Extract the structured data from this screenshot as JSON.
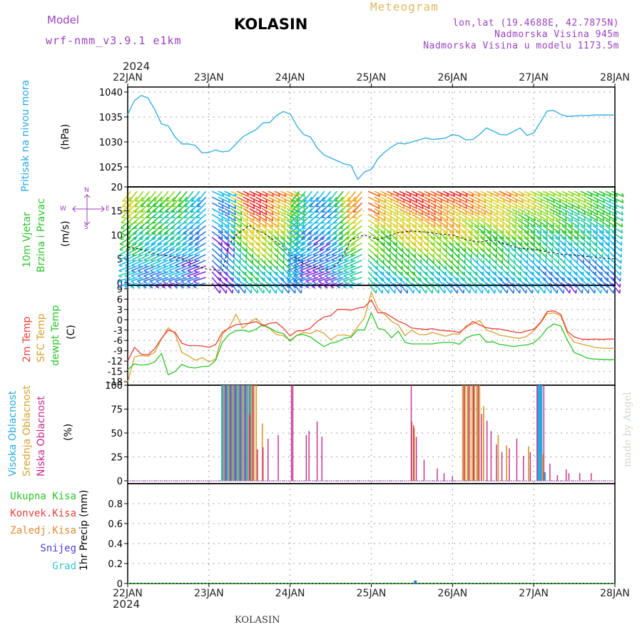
{
  "header": {
    "model_label": "Model",
    "model_name": "wrf-nmm_v3.9.1 e1km",
    "station": "KOLASIN",
    "meteogram_label": "Meteogram",
    "lonlat": "lon,lat (19.4688E, 42.7875N)",
    "altitude": "Nadmorska Visina 945m",
    "model_altitude": "Nadmorska Visina u modelu 1173.5m"
  },
  "footer": {
    "station": "KOLASIN",
    "credit": "made by Angel"
  },
  "time_axis": {
    "year": "2024",
    "days": [
      "22JAN",
      "23JAN",
      "24JAN",
      "25JAN",
      "26JAN",
      "27JAN",
      "28JAN"
    ]
  },
  "labels": {
    "pressure_name": "Pritisak na nivou mora",
    "pressure_unit": "(hPa)",
    "wind_name1": "10m Vjetar",
    "wind_name2": "Brzina i Pravac",
    "wind_unit": "(m/s)",
    "compass_w": "W",
    "compass_e": "E",
    "compass_n": "N",
    "compass_s": "S",
    "temp2m": "2m Temp",
    "tempsfc": "SFC Temp",
    "dewpt": "dewpt Temp",
    "temp_unit": "(C)",
    "cloud_high": "Visoka Oblacnost",
    "cloud_mid": "Srednja Oblacnost",
    "cloud_low": "Niska Oblacnost",
    "cloud_unit": "(%)",
    "precip_total": "Ukupna Kisa",
    "precip_conv": "Konvek.Kisa",
    "precip_frozen": "Zaledj.Kisa",
    "precip_snow": "Snijeg",
    "precip_hail": "Grad",
    "precip_unit": "1hr Precip (mm)"
  },
  "colors": {
    "pressure": "#29a9e1",
    "temp2m": "#e8403a",
    "tempsfc": "#d9a030",
    "dewpt": "#2bc52b",
    "cloud_high": "#29a9e1",
    "cloud_mid": "#d9a030",
    "cloud_low": "#c8288c",
    "precip_total": "#2bc52b",
    "precip_conv": "#e8403a",
    "precip_frozen": "#e08a30",
    "precip_snow": "#4a40d8",
    "precip_hail": "#30c8c0",
    "title_purple": "#9a40c0",
    "meteogram_gold": "#e0b860"
  },
  "chart_data": [
    {
      "type": "line",
      "name": "pressure",
      "ylabel": "Pritisak na nivou mora (hPa)",
      "ylim": [
        1021,
        1041
      ],
      "yticks": [
        1025,
        1030,
        1035,
        1040
      ],
      "xlim": [
        0,
        144
      ],
      "x": [
        0,
        2,
        4,
        6,
        8,
        10,
        12,
        14,
        16,
        18,
        20,
        22,
        24,
        26,
        28,
        30,
        32,
        34,
        36,
        38,
        40,
        42,
        44,
        46,
        48,
        50,
        52,
        54,
        56,
        58,
        60,
        62,
        64,
        66,
        68,
        70,
        72,
        74,
        76,
        78,
        80,
        82,
        84,
        86,
        88,
        90,
        92,
        94,
        96,
        98,
        100,
        102,
        104,
        106,
        108,
        110,
        112,
        114,
        116,
        118,
        120,
        122,
        124,
        126,
        128,
        130,
        132,
        134,
        136,
        138,
        140,
        142,
        144
      ],
      "series": [
        {
          "values": [
            1035.5,
            1038.3,
            1039.3,
            1038.8,
            1036.5,
            1033.6,
            1033.2,
            1031,
            1029.6,
            1029.6,
            1029.3,
            1027.8,
            1027.9,
            1028.4,
            1028,
            1028.2,
            1029.6,
            1031,
            1031.8,
            1032.5,
            1033.8,
            1033.9,
            1035.3,
            1036.1,
            1035.6,
            1033.2,
            1031.5,
            1031,
            1028.8,
            1027.4,
            1026.8,
            1026.2,
            1025.6,
            1025.3,
            1022.5,
            1024,
            1024.5,
            1026.7,
            1028,
            1029,
            1029.8,
            1029.6,
            1030,
            1030.4,
            1030.8,
            1030.5,
            1030.6,
            1030.8,
            1031.5,
            1031.2,
            1030.4,
            1030.5,
            1031.5,
            1032.8,
            1032.2,
            1031.5,
            1031.4,
            1032.1,
            1032.8,
            1031.3,
            1031.8,
            1034,
            1036.2,
            1036.3,
            1035.5,
            1035.1,
            1035.2,
            1035.3,
            1035.3,
            1035.4,
            1035.4,
            1035.4,
            1035.4
          ]
        }
      ]
    },
    {
      "type": "line",
      "name": "wind",
      "ylabel": "10m Vjetar Brzina i Pravac (m/s)",
      "ylim": [
        -0.5,
        20
      ],
      "yticks": [
        0,
        5,
        10,
        15,
        20
      ],
      "xlim": [
        0,
        144
      ],
      "x": [
        0,
        4,
        8,
        12,
        16,
        20,
        24,
        28,
        30,
        32,
        34,
        36,
        38,
        40,
        42,
        44,
        46,
        48,
        50,
        52,
        54,
        56,
        58,
        60,
        62,
        64,
        66,
        68,
        70,
        72,
        74,
        76,
        78,
        80,
        84,
        88,
        92,
        96,
        100,
        104,
        108,
        112,
        116,
        120,
        124,
        128,
        132,
        136,
        140,
        144
      ],
      "series": [
        {
          "values": [
            7.5,
            7,
            6,
            5.6,
            5.2,
            3.4,
            2.8,
            2.6,
            8,
            10,
            11,
            12,
            11,
            10.5,
            9.5,
            8.5,
            7.5,
            6,
            5,
            4,
            3.5,
            3,
            2.8,
            3,
            4,
            6,
            9,
            9.5,
            10,
            9.5,
            9,
            9.5,
            10,
            10.5,
            10.8,
            10.6,
            10.2,
            10,
            9,
            8.5,
            9,
            8,
            7.2,
            7,
            6.5,
            6,
            5.8,
            5.5,
            5.2,
            5
          ]
        }
      ],
      "barbs": {
        "speed_range": [
          0,
          18
        ],
        "palette": [
          "#7a2cd8",
          "#2b7be0",
          "#18b8e8",
          "#22c8a0",
          "#2bc52b",
          "#8ad820",
          "#d8d020",
          "#f0a020",
          "#f06020",
          "#e82a2a"
        ]
      }
    },
    {
      "type": "line",
      "name": "temperature",
      "ylabel": "(C)",
      "ylim": [
        -19,
        10
      ],
      "yticks": [
        -18,
        -15,
        -12,
        -9,
        -6,
        -3,
        0,
        3,
        6,
        9
      ],
      "xlim": [
        0,
        144
      ],
      "x": [
        0,
        2,
        4,
        6,
        8,
        10,
        12,
        14,
        16,
        18,
        20,
        22,
        24,
        26,
        28,
        30,
        32,
        34,
        36,
        38,
        40,
        42,
        44,
        46,
        48,
        50,
        52,
        54,
        56,
        58,
        60,
        62,
        64,
        66,
        68,
        70,
        72,
        74,
        76,
        78,
        80,
        82,
        84,
        86,
        88,
        90,
        92,
        94,
        96,
        98,
        100,
        102,
        104,
        106,
        108,
        110,
        112,
        114,
        116,
        118,
        120,
        122,
        124,
        126,
        128,
        130,
        132,
        134,
        136,
        138,
        140,
        142,
        144
      ],
      "series": [
        {
          "name": "2m Temp",
          "values": [
            -12,
            -8,
            -10,
            -10.2,
            -8.4,
            -5.4,
            -3,
            -3.6,
            -6.8,
            -7.5,
            -7.5,
            -7.6,
            -8,
            -7.2,
            -3.6,
            -2.4,
            -1.4,
            -1.2,
            -1,
            -0.5,
            -1.8,
            -1,
            -0.8,
            -2.4,
            -4.7,
            -3.2,
            -3.2,
            -2.4,
            -0.5,
            0.8,
            1.2,
            3,
            3,
            2.8,
            3.4,
            3.7,
            5.8,
            2,
            2,
            0.8,
            -0.4,
            -1.2,
            -2.4,
            -2.6,
            -2.8,
            -2.6,
            -3,
            -3.2,
            -3.3,
            -3.7,
            -2.2,
            -0.5,
            -1.5,
            -2.3,
            -2.6,
            -2.7,
            -3.1,
            -3.5,
            -3.8,
            -3.2,
            -2.8,
            -0.8,
            2.4,
            2.6,
            1.6,
            -3.4,
            -5,
            -5.6,
            -5.7,
            -5.6,
            -5.7,
            -5.6,
            -5.6
          ]
        },
        {
          "name": "SFC Temp",
          "values": [
            -18.2,
            -10.8,
            -10.4,
            -10.6,
            -9.4,
            -5.6,
            -2.3,
            -4,
            -9.5,
            -10.5,
            -11.8,
            -11,
            -12.2,
            -11.4,
            -4.2,
            -2.2,
            1.6,
            -2.4,
            -0.8,
            0.4,
            -1.6,
            -2.6,
            -4.3,
            -4.6,
            -6,
            -4.5,
            -3.7,
            -4,
            -3.1,
            -3.9,
            -5.8,
            -4.5,
            -4.4,
            -4.8,
            -2,
            0.6,
            8,
            3.2,
            1.5,
            -0.5,
            -1.5,
            -4.6,
            -3,
            -4.3,
            -4.4,
            -3.7,
            -4.3,
            -4.8,
            -4.1,
            -4.2,
            -1.8,
            -1.2,
            -0.2,
            -3,
            -3.6,
            -4.5,
            -4.8,
            -5.2,
            -5.4,
            -4.8,
            -3.2,
            -1,
            1.8,
            2,
            1.2,
            -4,
            -6.5,
            -7,
            -7.5,
            -8,
            -8.2,
            -8.3,
            -8.3
          ]
        },
        {
          "name": "dewpt Temp",
          "values": [
            -14.5,
            -12.8,
            -13.2,
            -13,
            -12.2,
            -9.8,
            -16,
            -15,
            -13,
            -13.8,
            -14,
            -13.6,
            -13.5,
            -11.8,
            -6.5,
            -4.2,
            -3.2,
            -3,
            -3.5,
            -2.7,
            -1.4,
            -2.4,
            -3.5,
            -4,
            -6.2,
            -4.5,
            -4.3,
            -5,
            -6.4,
            -7.8,
            -6.8,
            -6.4,
            -5.4,
            -5.1,
            -2.9,
            -3,
            2,
            -2.5,
            -3,
            -5.2,
            -3.3,
            -6.6,
            -7,
            -7,
            -7,
            -7,
            -6.7,
            -6.6,
            -6.6,
            -7.1,
            -5.3,
            -4.5,
            -4.2,
            -6.5,
            -6.4,
            -7.2,
            -7.4,
            -7.8,
            -7.5,
            -7.3,
            -6.7,
            -5,
            -2.5,
            -1.2,
            -1.8,
            -6,
            -9.5,
            -10.3,
            -11.2,
            -11.4,
            -11.5,
            -11.6,
            -11.6
          ]
        }
      ]
    },
    {
      "type": "bar",
      "name": "clouds",
      "ylabel": "(%)",
      "ylim": [
        -3,
        100
      ],
      "yticks": [
        0,
        25,
        50,
        75,
        100
      ],
      "xlim": [
        0,
        144
      ],
      "series": [
        {
          "name": "Visoka Oblacnost",
          "x": [
            28,
            28.7,
            29.4,
            30.1,
            30.8,
            31.5,
            32.2,
            33,
            33.8,
            34.6,
            35.4,
            36.2,
            121.4,
            121.8,
            122.2,
            123.2
          ],
          "values": [
            100,
            100,
            100,
            100,
            100,
            100,
            100,
            100,
            100,
            100,
            100,
            100,
            100,
            100,
            100,
            9
          ]
        },
        {
          "name": "Srednja Oblacnost",
          "x": [
            28.4,
            29.8,
            31.1,
            32.6,
            34,
            35.6,
            36.6,
            37.3,
            38,
            39.8,
            84,
            84.7,
            99,
            99.7,
            100.4,
            101.1,
            101.8,
            102.5,
            103.2,
            104,
            105.2,
            109.5,
            112,
            118.5,
            122.6
          ],
          "values": [
            100,
            100,
            100,
            100,
            100,
            100,
            100,
            100,
            100,
            60,
            62,
            55,
            100,
            100,
            100,
            100,
            100,
            100,
            100,
            100,
            78,
            48,
            37,
            36,
            28
          ]
        },
        {
          "name": "Niska Oblacnost",
          "x": [
            29,
            30.4,
            31.8,
            33.3,
            34.8,
            36,
            37,
            38.4,
            40,
            41.5,
            44.5,
            48.4,
            48.8,
            52.8,
            53.6,
            56,
            57.4,
            83.8,
            84.5,
            85.3,
            87.6,
            91.5,
            93.5,
            96,
            99.4,
            100.8,
            102.2,
            103.6,
            104.6,
            106.2,
            107.4,
            109,
            110.6,
            112.8,
            115,
            117,
            119,
            121,
            123,
            124.8,
            127,
            129.6,
            130.4,
            133.6,
            137
          ],
          "values": [
            100,
            100,
            100,
            100,
            100,
            70,
            100,
            33,
            35,
            44,
            48,
            100,
            100,
            48,
            52,
            62,
            46,
            100,
            58,
            46,
            22,
            13,
            8,
            5,
            100,
            100,
            100,
            100,
            70,
            63,
            52,
            38,
            30,
            34,
            44,
            26,
            30,
            100,
            100,
            18,
            6,
            12,
            8,
            8,
            8
          ]
        }
      ]
    },
    {
      "type": "bar",
      "name": "precipitation",
      "ylabel": "1hr Precip (mm)",
      "ylim": [
        0,
        1.0
      ],
      "yticks": [
        0,
        0.2,
        0.4,
        0.6,
        0.8
      ],
      "xlim": [
        0,
        144
      ],
      "series": [
        {
          "name": "Ukupna Kisa",
          "x": [
            85
          ],
          "values": [
            0.03
          ]
        },
        {
          "name": "Konvek.Kisa",
          "x": [],
          "values": []
        },
        {
          "name": "Zaledj.Kisa",
          "x": [],
          "values": []
        },
        {
          "name": "Snijeg",
          "x": [],
          "values": []
        },
        {
          "name": "Grad",
          "x": [],
          "values": []
        }
      ]
    }
  ]
}
